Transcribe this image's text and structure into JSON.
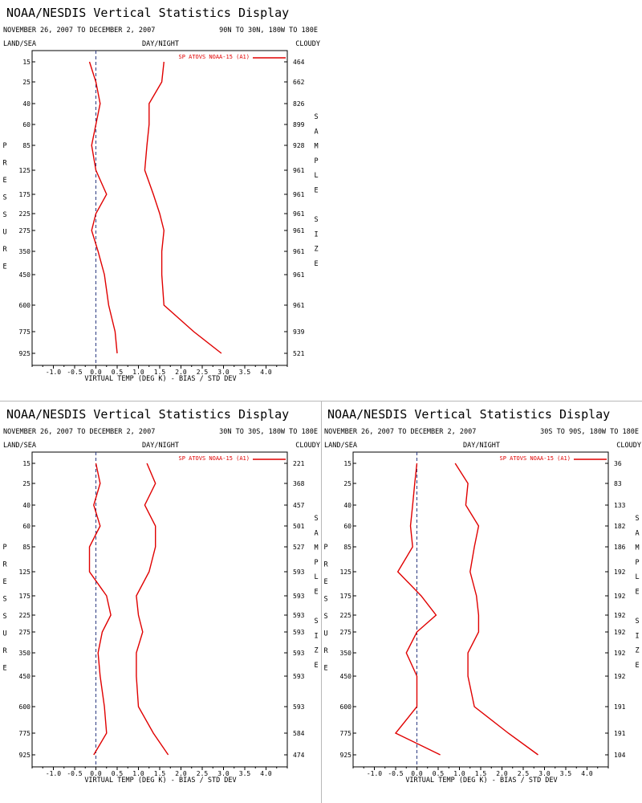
{
  "colors": {
    "series": "#e00000",
    "zero_line": "#2b3a80",
    "divider": "#b8b8b8"
  },
  "labels": {
    "land_sea": "LAND/SEA",
    "day_night": "DAY/NIGHT",
    "cloudy": "CLOUDY",
    "pressure_letters": [
      "P",
      "R",
      "E",
      "S",
      "S",
      "U",
      "R",
      "E"
    ],
    "sample_size_letters": [
      "S",
      "A",
      "M",
      "P",
      "L",
      "E",
      "",
      "S",
      "I",
      "Z",
      "E"
    ]
  },
  "chart_data": [
    {
      "type": "line",
      "title": "NOAA/NESDIS Vertical Statistics Display",
      "date_range": "NOVEMBER 26, 2007 TO DECEMBER 2, 2007",
      "region": "90N TO 30N, 180W TO 180E",
      "xlabel": "VIRTUAL TEMP (DEG K) - BIAS / STD DEV",
      "ylabel": "PRESSURE",
      "right_label": "SAMPLE SIZE",
      "xlim": [
        -1.5,
        4.5
      ],
      "xticks": [
        -1.0,
        -0.5,
        0.0,
        0.5,
        1.0,
        1.5,
        2.0,
        2.5,
        3.0,
        3.5,
        4.0
      ],
      "pressure_levels": [
        15,
        25,
        40,
        60,
        85,
        125,
        175,
        225,
        275,
        350,
        450,
        600,
        775,
        925
      ],
      "sample_sizes": [
        464,
        662,
        826,
        899,
        928,
        961,
        961,
        961,
        961,
        961,
        961,
        961,
        939,
        521
      ],
      "legend": "SP ATOVS NOAA-15 (A1)",
      "series": [
        {
          "name": "bias",
          "values": [
            -0.15,
            0.0,
            0.1,
            0.0,
            -0.1,
            0.0,
            0.25,
            0.0,
            -0.1,
            0.05,
            0.2,
            0.3,
            0.45,
            0.5
          ]
        },
        {
          "name": "std_dev",
          "values": [
            1.6,
            1.55,
            1.25,
            1.25,
            1.2,
            1.15,
            1.35,
            1.5,
            1.6,
            1.55,
            1.55,
            1.6,
            2.3,
            2.95
          ]
        }
      ]
    },
    {
      "type": "line",
      "title": "NOAA/NESDIS Vertical Statistics Display",
      "date_range": "NOVEMBER 26, 2007 TO DECEMBER 2, 2007",
      "region": "30N TO 30S, 180W TO 180E",
      "xlabel": "VIRTUAL TEMP (DEG K) - BIAS / STD DEV",
      "ylabel": "PRESSURE",
      "right_label": "SAMPLE SIZE",
      "xlim": [
        -1.5,
        4.5
      ],
      "xticks": [
        -1.0,
        -0.5,
        0.0,
        0.5,
        1.0,
        1.5,
        2.0,
        2.5,
        3.0,
        3.5,
        4.0
      ],
      "pressure_levels": [
        15,
        25,
        40,
        60,
        85,
        125,
        175,
        225,
        275,
        350,
        450,
        600,
        775,
        925
      ],
      "sample_sizes": [
        221,
        368,
        457,
        501,
        527,
        593,
        593,
        593,
        593,
        593,
        593,
        593,
        584,
        474
      ],
      "legend": "SP ATOVS NOAA-15 (A1)",
      "series": [
        {
          "name": "bias",
          "values": [
            0.0,
            0.1,
            -0.05,
            0.1,
            -0.15,
            -0.15,
            0.25,
            0.35,
            0.15,
            0.05,
            0.1,
            0.2,
            0.25,
            -0.05
          ]
        },
        {
          "name": "std_dev",
          "values": [
            1.2,
            1.4,
            1.15,
            1.4,
            1.4,
            1.25,
            0.95,
            1.0,
            1.1,
            0.95,
            0.95,
            1.0,
            1.35,
            1.7
          ]
        }
      ]
    },
    {
      "type": "line",
      "title": "NOAA/NESDIS Vertical Statistics Display",
      "date_range": "NOVEMBER 26, 2007 TO DECEMBER 2, 2007",
      "region": "30S TO 90S, 180W TO 180E",
      "xlabel": "VIRTUAL TEMP (DEG K) - BIAS / STD DEV",
      "ylabel": "PRESSURE",
      "right_label": "SAMPLE SIZE",
      "xlim": [
        -1.5,
        4.5
      ],
      "xticks": [
        -1.0,
        -0.5,
        0.0,
        0.5,
        1.0,
        1.5,
        2.0,
        2.5,
        3.0,
        3.5,
        4.0
      ],
      "pressure_levels": [
        15,
        25,
        40,
        60,
        85,
        125,
        175,
        225,
        275,
        350,
        450,
        600,
        775,
        925
      ],
      "sample_sizes": [
        36,
        83,
        133,
        182,
        186,
        192,
        192,
        192,
        192,
        192,
        192,
        191,
        191,
        104
      ],
      "legend": "SP ATOVS NOAA-15 (A1)",
      "series": [
        {
          "name": "bias",
          "values": [
            0.0,
            -0.05,
            -0.1,
            -0.15,
            -0.1,
            -0.45,
            0.1,
            0.45,
            0.0,
            -0.25,
            0.0,
            0.0,
            -0.5,
            0.55
          ]
        },
        {
          "name": "std_dev",
          "values": [
            0.9,
            1.2,
            1.15,
            1.45,
            1.35,
            1.25,
            1.4,
            1.45,
            1.45,
            1.2,
            1.2,
            1.35,
            2.15,
            2.85
          ]
        }
      ]
    }
  ]
}
